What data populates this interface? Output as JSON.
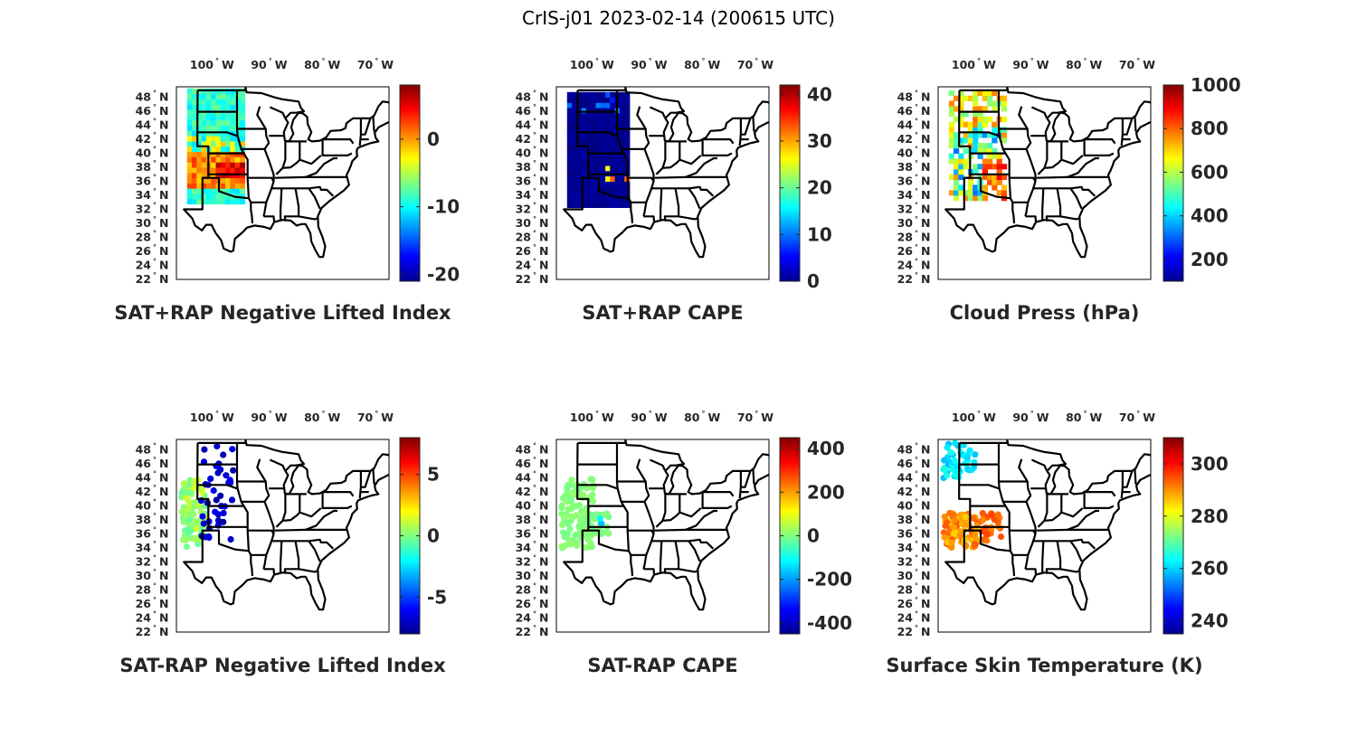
{
  "figure_title": "CrIS-j01 2023-02-14 (200615 UTC)",
  "colormap": "jet",
  "lat_ticks": [
    "48",
    "46",
    "44",
    "42",
    "40",
    "38",
    "36",
    "34",
    "32",
    "30",
    "28",
    "26",
    "24",
    "22"
  ],
  "lat_hemisphere": "N",
  "lon_ticks": [
    "100",
    "90",
    "80",
    "70"
  ],
  "lon_hemisphere": "W",
  "chart_data": [
    {
      "type": "heatmap",
      "title": "SAT+RAP Negative Lifted Index",
      "colorbar_ticks": [
        "0",
        "-10",
        "-20"
      ],
      "clim": [
        -21,
        8
      ],
      "swath": {
        "lon": [
          -106,
          -96
        ],
        "lat": [
          33.5,
          49.5
        ]
      },
      "field_desc": "mostly -12 to -8 in north, 0 to 3 in south-central Kansas"
    },
    {
      "type": "heatmap",
      "title": "SAT+RAP CAPE",
      "colorbar_ticks": [
        "40",
        "30",
        "20",
        "10",
        "0"
      ],
      "clim": [
        0,
        42
      ],
      "swath": {
        "lon": [
          -106,
          -95
        ],
        "lat": [
          33,
          49.5
        ]
      },
      "field_desc": "mostly 0 with small patches up to ~40 in Kansas/Oklahoma"
    },
    {
      "type": "heatmap",
      "title": "Cloud Press (hPa)",
      "colorbar_ticks": [
        "1000",
        "800",
        "600",
        "400",
        "200"
      ],
      "clim": [
        100,
        1000
      ],
      "swath": {
        "lon": [
          -106,
          -95.5
        ],
        "lat": [
          34,
          49.5
        ]
      },
      "field_desc": "scattered clouds 200 to 900 hPa"
    },
    {
      "type": "scatter",
      "title": "SAT-RAP Negative Lifted Index",
      "colorbar_ticks": [
        "5",
        "0",
        "-5"
      ],
      "clim": [
        -8,
        8
      ],
      "field_desc": "differences near 0 in the west, about -8 in central plains"
    },
    {
      "type": "scatter",
      "title": "SAT-RAP CAPE",
      "colorbar_ticks": [
        "400",
        "200",
        "0",
        "-200",
        "-400"
      ],
      "clim": [
        -450,
        450
      ],
      "field_desc": "differences near 0 everywhere, a few small negatives"
    },
    {
      "type": "scatter",
      "title": "Surface Skin Temperature (K)",
      "colorbar_ticks": [
        "300",
        "280",
        "260",
        "240"
      ],
      "clim": [
        235,
        310
      ],
      "field_desc": "about 255 to 265 K in the north, 285 to 295 K in the south"
    }
  ]
}
